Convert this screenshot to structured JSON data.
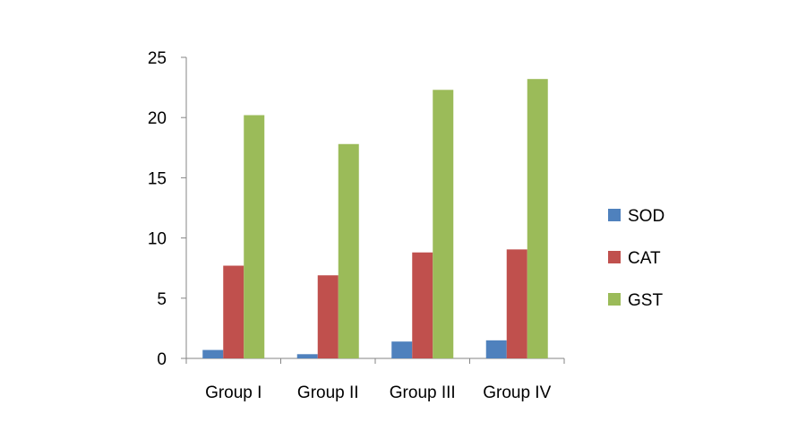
{
  "chart_data": {
    "type": "bar",
    "categories": [
      "Group I",
      "Group II",
      "Group III",
      "Group IV"
    ],
    "series": [
      {
        "name": "SOD",
        "color": "#4f81bd",
        "values": [
          0.7,
          0.35,
          1.4,
          1.5
        ]
      },
      {
        "name": "CAT",
        "color": "#c0504d",
        "values": [
          7.7,
          6.9,
          8.8,
          9.05
        ]
      },
      {
        "name": "GST",
        "color": "#9bbb59",
        "values": [
          20.2,
          17.8,
          22.3,
          23.2
        ]
      }
    ],
    "ylim": [
      0,
      25
    ],
    "yticks": [
      0,
      5,
      10,
      15,
      20,
      25
    ],
    "grid": false,
    "legend_position": "right"
  }
}
